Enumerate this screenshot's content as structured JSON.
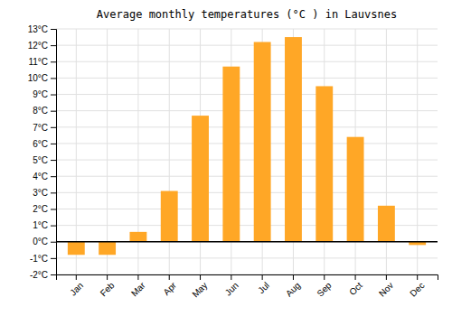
{
  "chart_data": {
    "type": "bar",
    "title": "Average monthly temperatures (°C ) in Lauvsnes",
    "categories": [
      "Jan",
      "Feb",
      "Mar",
      "Apr",
      "May",
      "Jun",
      "Jul",
      "Aug",
      "Sep",
      "Oct",
      "Nov",
      "Dec"
    ],
    "values": [
      -0.8,
      -0.8,
      0.6,
      3.1,
      7.7,
      10.7,
      12.2,
      12.5,
      9.5,
      6.4,
      2.2,
      -0.2
    ],
    "color": "#FFA726",
    "ylim": [
      -2,
      13
    ],
    "yticks": [
      {
        "value": -2,
        "label": "-2°C"
      },
      {
        "value": -1,
        "label": "-1°C"
      },
      {
        "value": 0,
        "label": "0°C"
      },
      {
        "value": 1,
        "label": "1°C"
      },
      {
        "value": 2,
        "label": "2°C"
      },
      {
        "value": 3,
        "label": "3°C"
      },
      {
        "value": 4,
        "label": "4°C"
      },
      {
        "value": 5,
        "label": "5°C"
      },
      {
        "value": 6,
        "label": "6°C"
      },
      {
        "value": 7,
        "label": "7°C"
      },
      {
        "value": 8,
        "label": "8°C"
      },
      {
        "value": 9,
        "label": "9°C"
      },
      {
        "value": 10,
        "label": "10°C"
      },
      {
        "value": 11,
        "label": "11°C"
      },
      {
        "value": 12,
        "label": "12°C"
      },
      {
        "value": 13,
        "label": "13°C"
      }
    ],
    "grid": true
  }
}
